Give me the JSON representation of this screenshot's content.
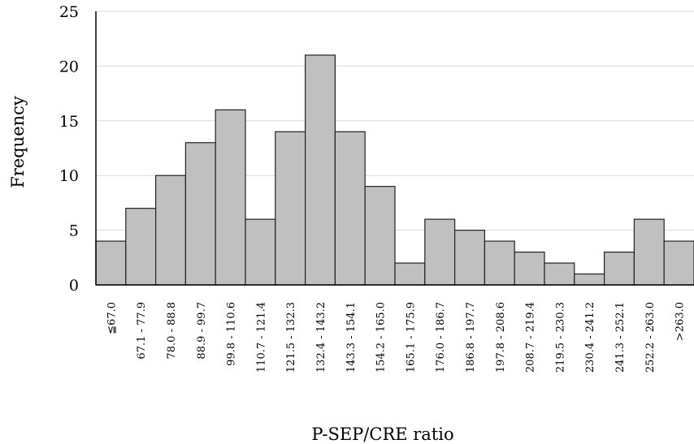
{
  "chart_data": {
    "type": "bar",
    "xlabel": "P-SEP/CRE ratio",
    "ylabel": "Frequency",
    "ylim": [
      0,
      25
    ],
    "yticks": [
      "0",
      "5",
      "10",
      "15",
      "20",
      "25"
    ],
    "grid": true,
    "categories": [
      "≦67.0",
      "67.1 - 77.9",
      "78.0 - 88.8",
      "88.9 - 99.7",
      "99.8 - 110.6",
      "110.7 - 121.4",
      "121.5 - 132.3",
      "132.4 - 143.2",
      "143.3 - 154.1",
      "154.2 - 165.0",
      "165.1 - 175.9",
      "176.0 - 186.7",
      "186.8 - 197.7",
      "197.8 - 208.6",
      "208.7 - 219.4",
      "219.5 - 230.3",
      "230.4 - 241.2",
      "241.3 - 252.1",
      "252.2 - 263.0",
      ">263.0"
    ],
    "values": [
      4,
      7,
      10,
      13,
      16,
      6,
      14,
      21,
      14,
      9,
      2,
      6,
      5,
      4,
      3,
      2,
      1,
      3,
      6,
      4
    ],
    "bar_color": "#c0c0c0",
    "bar_edge_color": "#222222"
  }
}
